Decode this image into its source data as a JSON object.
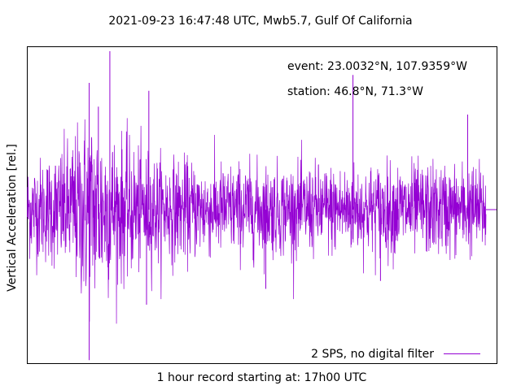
{
  "chart_data": {
    "type": "line",
    "title": "2021-09-23 16:47:48 UTC, Mwb5.7, Gulf Of California",
    "xlabel": "1 hour record starting at: 17h00 UTC",
    "ylabel": "Vertical Acceleration [rel.]",
    "annotations": [
      "event: 23.0032°N, 107.9359°W",
      "station: 46.8°N, 71.3°W"
    ],
    "legend": {
      "position": "bottom-right",
      "entries": [
        "2 SPS, no digital filter"
      ]
    },
    "grid": false,
    "x_ticks": false,
    "y_ticks": false,
    "series": [
      {
        "name": "2 SPS, no digital filter",
        "color": "#9400d3",
        "description_envelope": {
          "x": [
            0,
            0.05,
            0.1,
            0.13,
            0.16,
            0.2,
            0.25,
            0.3,
            0.4,
            0.5,
            0.6,
            0.7,
            0.8,
            0.9,
            1.0
          ],
          "amplitude": [
            0.33,
            0.38,
            0.5,
            0.7,
            0.62,
            0.5,
            0.42,
            0.36,
            0.32,
            0.32,
            0.31,
            0.31,
            0.32,
            0.32,
            0.31
          ]
        },
        "spikes": [
          {
            "x": 0.18,
            "y": 1.0
          },
          {
            "x": 0.135,
            "y": -0.95
          },
          {
            "x": 0.135,
            "y": 0.8
          },
          {
            "x": 0.155,
            "y": 0.65
          },
          {
            "x": 0.265,
            "y": 0.75
          },
          {
            "x": 0.26,
            "y": -0.6
          },
          {
            "x": 0.71,
            "y": 0.85
          },
          {
            "x": 0.96,
            "y": 0.6
          },
          {
            "x": 0.52,
            "y": -0.5
          },
          {
            "x": 0.77,
            "y": -0.45
          }
        ]
      }
    ]
  }
}
